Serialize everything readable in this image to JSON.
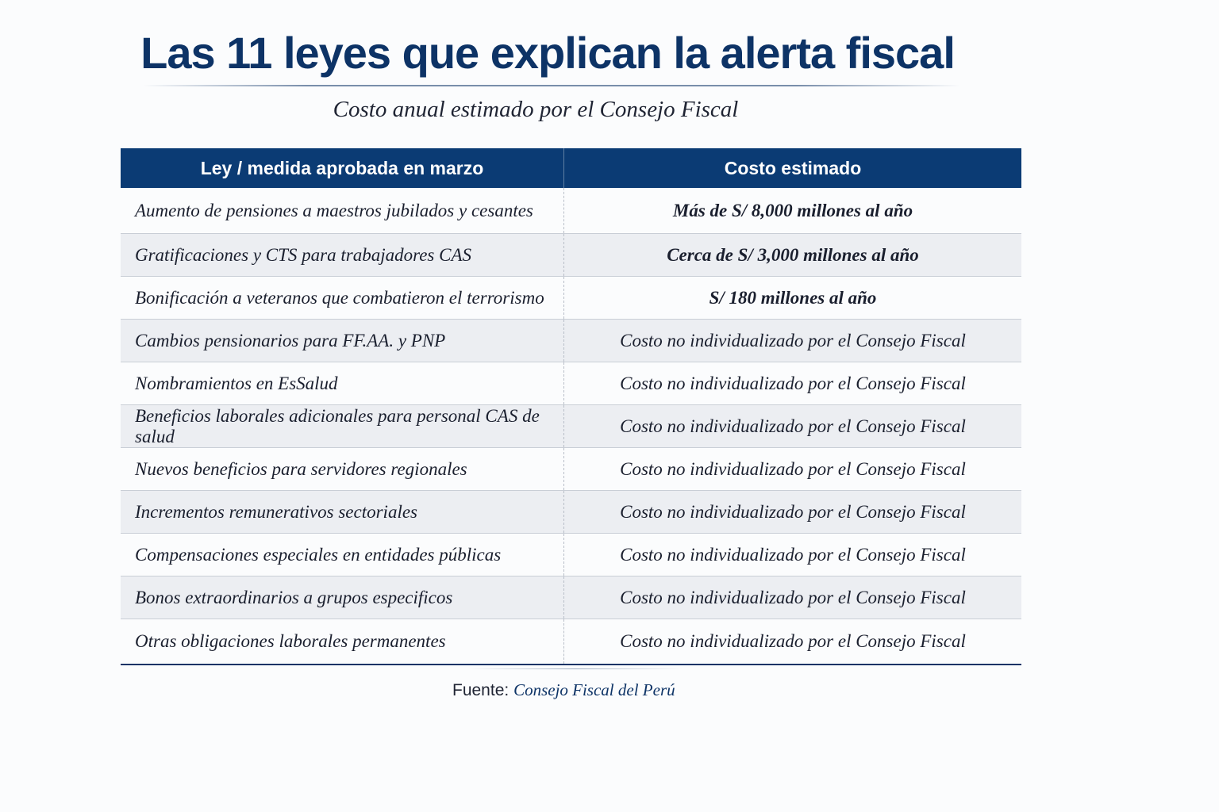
{
  "title": "Las 11 leyes que explican la alerta fiscal",
  "subtitle": "Costo anual estimado por el Consejo Fiscal",
  "table": {
    "headers": [
      "Ley / medida aprobada en marzo",
      "Costo estimado"
    ],
    "rows": [
      {
        "ley": "Aumento de pensiones a maestros jubilados y cesantes",
        "costo": "Más de S/ 8,000 millones al año"
      },
      {
        "ley": "Gratificaciones y CTS para trabajadores CAS",
        "costo": "Cerca de S/ 3,000 millones al año"
      },
      {
        "ley": "Bonificación a veteranos que combatieron el terrorismo",
        "costo": "S/ 180 millones al año"
      },
      {
        "ley": "Cambios pensionarios para FF.AA. y PNP",
        "costo": "Costo no individualizado por el Consejo Fiscal"
      },
      {
        "ley": "Nombramientos en EsSalud",
        "costo": "Costo no individualizado por el Consejo Fiscal"
      },
      {
        "ley": "Beneficios laborales adicionales para personal CAS de salud",
        "costo": "Costo no individualizado por el Consejo Fiscal"
      },
      {
        "ley": "Nuevos beneficios para servidores regionales",
        "costo": "Costo no individualizado por el Consejo Fiscal"
      },
      {
        "ley": "Incrementos remunerativos sectoriales",
        "costo": "Costo no individualizado por el Consejo Fiscal"
      },
      {
        "ley": "Compensaciones especiales en entidades públicas",
        "costo": "Costo no individualizado por el Consejo Fiscal"
      },
      {
        "ley": "Bonos extraordinarios a grupos especificos",
        "costo": "Costo no individualizado por el Consejo Fiscal"
      },
      {
        "ley": "Otras obligaciones laborales permanentes",
        "costo": "Costo no individualizado por el Consejo Fiscal"
      }
    ]
  },
  "source": {
    "label": "Fuente:",
    "name": "Consejo Fiscal del Perú"
  },
  "colors": {
    "header_bg": "#0b3b74",
    "title": "#0d3366",
    "row_alt": "#eceef2"
  }
}
